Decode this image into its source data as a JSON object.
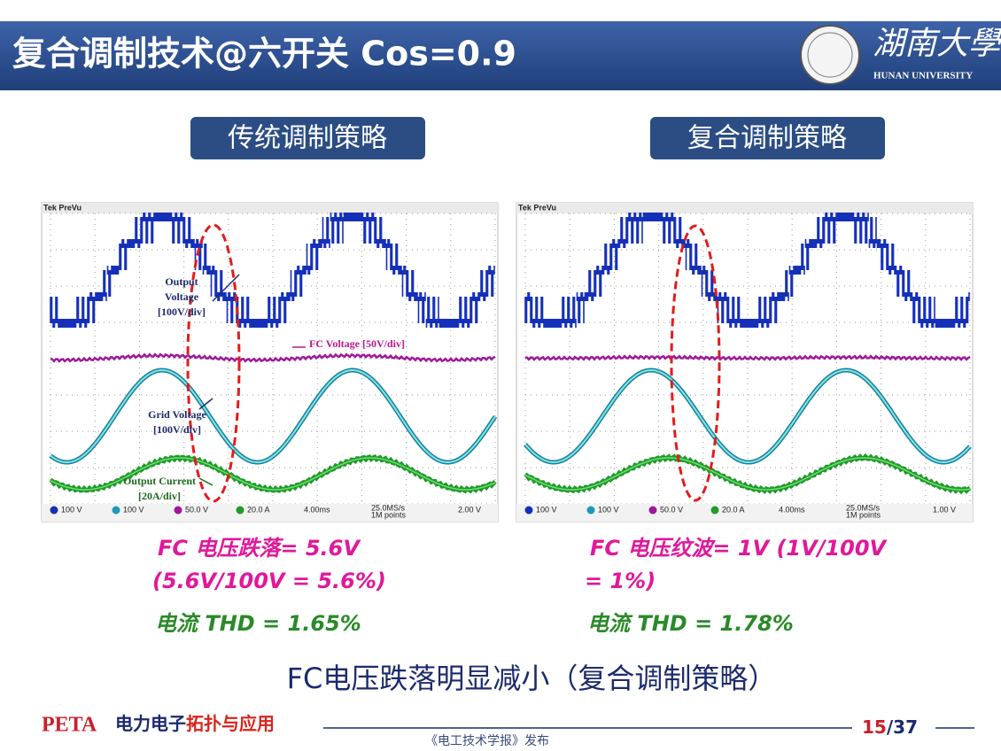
{
  "header": {
    "title": "复合调制技术@六开关 Cos=0.9",
    "logo_text": "湖南大學",
    "logo_subtext": "HUNAN UNIVERSITY"
  },
  "panels": [
    {
      "heading": "传统调制策略",
      "scope": {
        "brand": "Tek PreVu",
        "annotations": [
          "Output",
          "Voltage",
          "[100V/div]",
          "FC Voltage [50V/div]",
          "Grid Voltage",
          "[100V/div]",
          "Output Current",
          "[20A/div]"
        ],
        "status": [
          "100 V",
          "100 V",
          "50.0 V",
          "20.0 A",
          "4.00ms",
          "25.0MS/s",
          "1M points",
          "2.00 V"
        ]
      },
      "notes": [
        "FC 电压跌落= 5.6V",
        "(5.6V/100V = 5.6%)"
      ],
      "thd": "电流 THD = 1.65%"
    },
    {
      "heading": "复合调制策略",
      "scope": {
        "brand": "Tek PreVu",
        "annotations": [],
        "status": [
          "100 V",
          "100 V",
          "50.0 V",
          "20.0 A",
          "4.00ms",
          "25.0MS/s",
          "1M points",
          "1.00 V"
        ]
      },
      "notes": [
        "FC 电压纹波= 1V (1V/100V",
        "= 1%)"
      ],
      "thd": "电流 THD = 1.78%"
    }
  ],
  "conclusion": "FC电压跌落明显减小（复合调制策略）",
  "footer": {
    "brand": "PETA",
    "topic_a": "电力电子",
    "topic_b": "拓扑与应用",
    "publisher": "《电工技术学报》发布",
    "page": "15",
    "total": "/37"
  }
}
